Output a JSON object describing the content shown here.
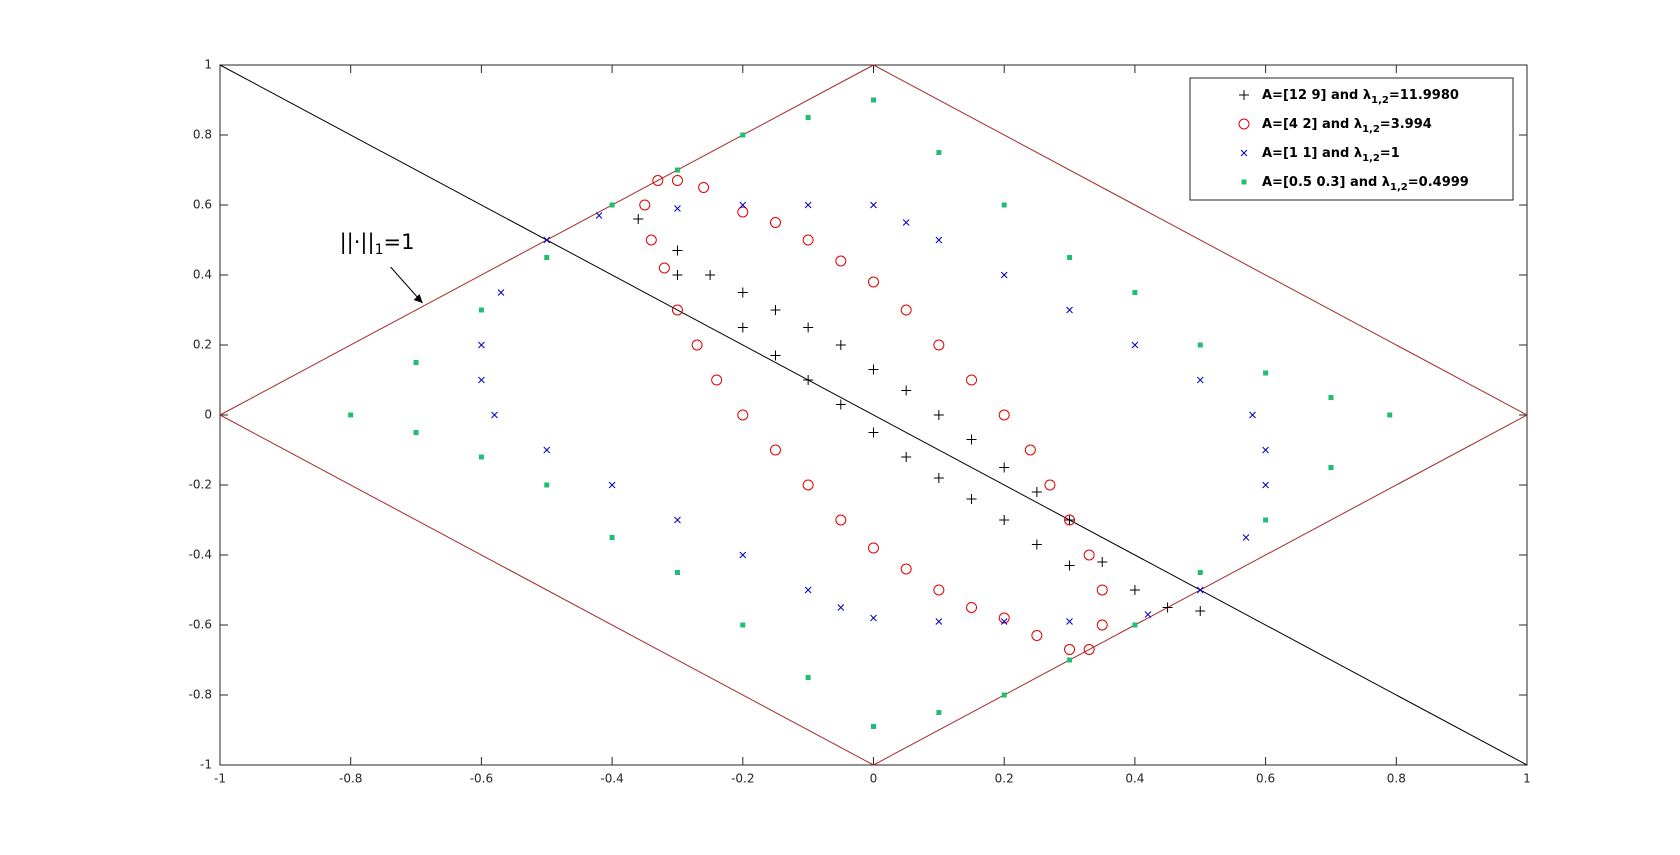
{
  "chart_data": {
    "type": "scatter",
    "xlim": [
      -1,
      1
    ],
    "ylim": [
      -1,
      1
    ],
    "xticks": [
      -1,
      -0.8,
      -0.6,
      -0.4,
      -0.2,
      0,
      0.2,
      0.4,
      0.6,
      0.8,
      1
    ],
    "yticks": [
      -1,
      -0.8,
      -0.6,
      -0.4,
      -0.2,
      0,
      0.2,
      0.4,
      0.6,
      0.8,
      1
    ],
    "legend": "northeast",
    "lines": [
      {
        "color": "#a52a2a",
        "x": [
          -1,
          0,
          1,
          0,
          -1
        ],
        "y": [
          0,
          1,
          0,
          -1,
          0
        ]
      },
      {
        "color": "#000000",
        "x": [
          -1,
          1
        ],
        "y": [
          1,
          -1
        ]
      }
    ],
    "annotation": {
      "text": "||·||",
      "subscript": "1",
      "tail": "=1",
      "xy": [
        -0.69,
        0.32
      ]
    },
    "series": [
      {
        "name": "A=[12 9] and λ",
        "subscript": "1,2",
        "name_end": "=11.9980",
        "marker": "plus",
        "color": "#000000",
        "x": [
          -0.36,
          -0.3,
          -0.25,
          -0.2,
          -0.15,
          -0.1,
          -0.05,
          0,
          0.05,
          0.1,
          0.15,
          0.2,
          0.25,
          0.3,
          0.35,
          -0.3,
          -0.2,
          -0.15,
          -0.1,
          -0.05,
          0,
          0.05,
          0.1,
          0.15,
          0.2,
          0.25,
          0.3,
          0.4,
          0.45,
          0.5
        ],
        "y": [
          0.56,
          0.47,
          0.4,
          0.35,
          0.3,
          0.25,
          0.2,
          0.13,
          0.07,
          0,
          -0.07,
          -0.15,
          -0.22,
          -0.3,
          -0.42,
          0.4,
          0.25,
          0.17,
          0.1,
          0.03,
          -0.05,
          -0.12,
          -0.18,
          -0.24,
          -0.3,
          -0.37,
          -0.43,
          -0.5,
          -0.55,
          -0.56
        ]
      },
      {
        "name": "A=[4 2] and λ",
        "subscript": "1,2",
        "name_end": "=3.994",
        "marker": "circle",
        "color": "#e00000",
        "x": [
          -0.33,
          -0.35,
          -0.34,
          -0.32,
          -0.3,
          -0.27,
          -0.24,
          -0.2,
          -0.15,
          -0.1,
          -0.05,
          0,
          0.05,
          0.1,
          0.15,
          0.2,
          0.25,
          0.3,
          0.33,
          0.35,
          0.35,
          0.33,
          0.3,
          0.27,
          0.24,
          0.2,
          0.15,
          0.1,
          0.05,
          0,
          -0.05,
          -0.1,
          -0.15,
          -0.2,
          -0.26,
          -0.3
        ],
        "y": [
          0.67,
          0.6,
          0.5,
          0.42,
          0.3,
          0.2,
          0.1,
          0,
          -0.1,
          -0.2,
          -0.3,
          -0.38,
          -0.44,
          -0.5,
          -0.55,
          -0.58,
          -0.63,
          -0.67,
          -0.67,
          -0.6,
          -0.5,
          -0.4,
          -0.3,
          -0.2,
          -0.1,
          0,
          0.1,
          0.2,
          0.3,
          0.38,
          0.44,
          0.5,
          0.55,
          0.58,
          0.65,
          0.67
        ]
      },
      {
        "name": "A=[1 1] and λ",
        "subscript": "1,2",
        "name_end": "=1",
        "marker": "x",
        "color": "#0000c8",
        "x": [
          -0.42,
          -0.3,
          -0.2,
          -0.1,
          0,
          0.05,
          0.1,
          0.2,
          0.3,
          0.4,
          0.5,
          0.58,
          0.6,
          0.6,
          0.57,
          0.5,
          0.42,
          0.3,
          0.2,
          0.1,
          0,
          -0.05,
          -0.1,
          -0.2,
          -0.3,
          -0.4,
          -0.5,
          -0.58,
          -0.6,
          -0.6,
          -0.57,
          -0.5
        ],
        "y": [
          0.57,
          0.59,
          0.6,
          0.6,
          0.6,
          0.55,
          0.5,
          0.4,
          0.3,
          0.2,
          0.1,
          0,
          -0.1,
          -0.2,
          -0.35,
          -0.5,
          -0.57,
          -0.59,
          -0.59,
          -0.59,
          -0.58,
          -0.55,
          -0.5,
          -0.4,
          -0.3,
          -0.2,
          -0.1,
          0,
          0.1,
          0.2,
          0.35,
          0.5
        ]
      },
      {
        "name": "A=[0.5 0.3] and λ",
        "subscript": "1,2",
        "name_end": "=0.4999",
        "marker": "square",
        "color": "#1fbf6f",
        "x": [
          0,
          -0.1,
          -0.2,
          -0.3,
          -0.4,
          -0.5,
          -0.6,
          -0.7,
          -0.8,
          -0.7,
          -0.6,
          -0.5,
          -0.4,
          -0.3,
          -0.2,
          -0.1,
          0,
          0.1,
          0.2,
          0.3,
          0.4,
          0.5,
          0.6,
          0.7,
          0.79,
          0.7,
          0.6,
          0.5,
          0.4,
          0.3,
          0.2,
          0.1
        ],
        "y": [
          0.9,
          0.85,
          0.8,
          0.7,
          0.6,
          0.45,
          0.3,
          0.15,
          0,
          -0.05,
          -0.12,
          -0.2,
          -0.35,
          -0.45,
          -0.6,
          -0.75,
          -0.89,
          -0.85,
          -0.8,
          -0.7,
          -0.6,
          -0.45,
          -0.3,
          -0.15,
          0,
          0.05,
          0.12,
          0.2,
          0.35,
          0.45,
          0.6,
          0.75
        ]
      }
    ]
  }
}
